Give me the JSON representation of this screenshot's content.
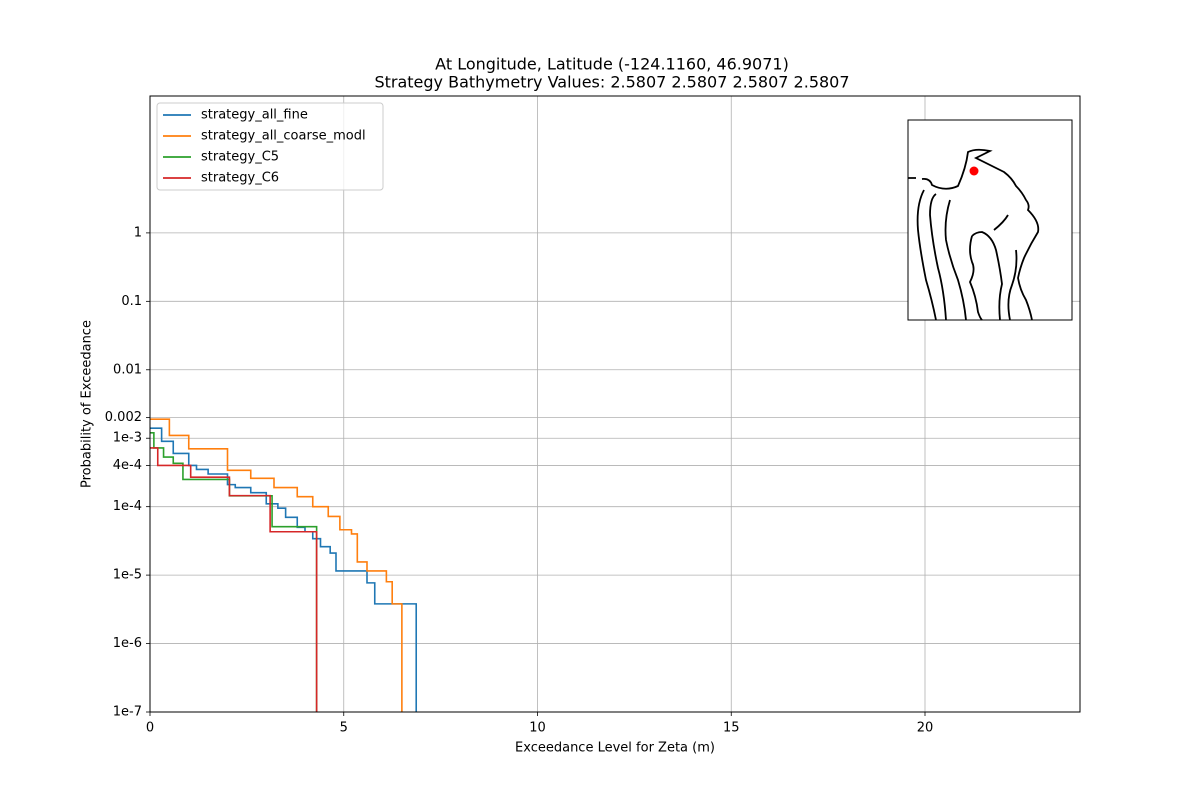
{
  "chart_data": {
    "type": "line",
    "drawstyle": "steps-post",
    "title": "At Longitude, Latitude (-124.1160,  46.9071)",
    "subtitle": "Strategy Bathymetry Values:    2.5807    2.5807    2.5807    2.5807",
    "xlabel": "Exceedance Level for Zeta (m)",
    "ylabel": "Probability of Exceedance",
    "xlim": [
      0,
      24
    ],
    "xticks": [
      0,
      5,
      10,
      15,
      20
    ],
    "ylim": [
      1e-07,
      100
    ],
    "yscale": "log",
    "yticks": [
      1e-07,
      {
        "value": 1e-06,
        "label": "1e-6"
      },
      {
        "value": 1e-05,
        "label": "1e-5"
      },
      {
        "value": 0.0001,
        "label": "1e-4"
      },
      {
        "value": 0.0004,
        "label": "4e-4"
      },
      {
        "value": 0.001,
        "label": "1e-3"
      },
      0.002,
      0.01,
      0.1,
      1
    ],
    "grid": true,
    "legend": "upper left",
    "series": [
      {
        "name": "strategy_all_fine",
        "color": "#1f77b4",
        "x": [
          0,
          0.3,
          0.6,
          1.0,
          1.2,
          1.5,
          2.0,
          2.2,
          2.6,
          3.0,
          3.3,
          3.5,
          3.8,
          4.0,
          4.2,
          4.4,
          4.65,
          4.8,
          5.6,
          5.8,
          6.87
        ],
        "values": [
          0.0014,
          0.0009,
          0.0006,
          0.0004,
          0.00035,
          0.0003,
          0.00021,
          0.00019,
          0.00016,
          0.00011,
          9.5e-05,
          7e-05,
          5e-05,
          4.3e-05,
          3.4e-05,
          2.6e-05,
          2.1e-05,
          1.15e-05,
          7.7e-06,
          3.8e-06,
          1e-07
        ]
      },
      {
        "name": "strategy_all_coarse_modl",
        "color": "#ff7f0e",
        "x": [
          0,
          0.5,
          1.0,
          2.0,
          2.6,
          3.2,
          3.8,
          4.2,
          4.6,
          4.9,
          5.2,
          5.35,
          5.6,
          6.1,
          6.25,
          6.5
        ],
        "values": [
          0.0019,
          0.0011,
          0.0007,
          0.00034,
          0.00026,
          0.00019,
          0.00014,
          0.0001,
          7.2e-05,
          4.6e-05,
          4e-05,
          1.56e-05,
          1.15e-05,
          8e-06,
          3.8e-06,
          1e-07
        ]
      },
      {
        "name": "strategy_C5",
        "color": "#2ca02c",
        "x": [
          0,
          0.1,
          0.35,
          0.6,
          0.85,
          2.05,
          3.15,
          4.3
        ],
        "values": [
          0.0012,
          0.00072,
          0.00053,
          0.00043,
          0.00025,
          0.000144,
          5.1e-05,
          1e-07
        ]
      },
      {
        "name": "strategy_C6",
        "color": "#d62728",
        "x": [
          0,
          0.2,
          1.05,
          2.05,
          3.1,
          4.3
        ],
        "values": [
          0.00072,
          0.0004,
          0.00027,
          0.000145,
          4.3e-05,
          1e-07
        ]
      }
    ]
  }
}
